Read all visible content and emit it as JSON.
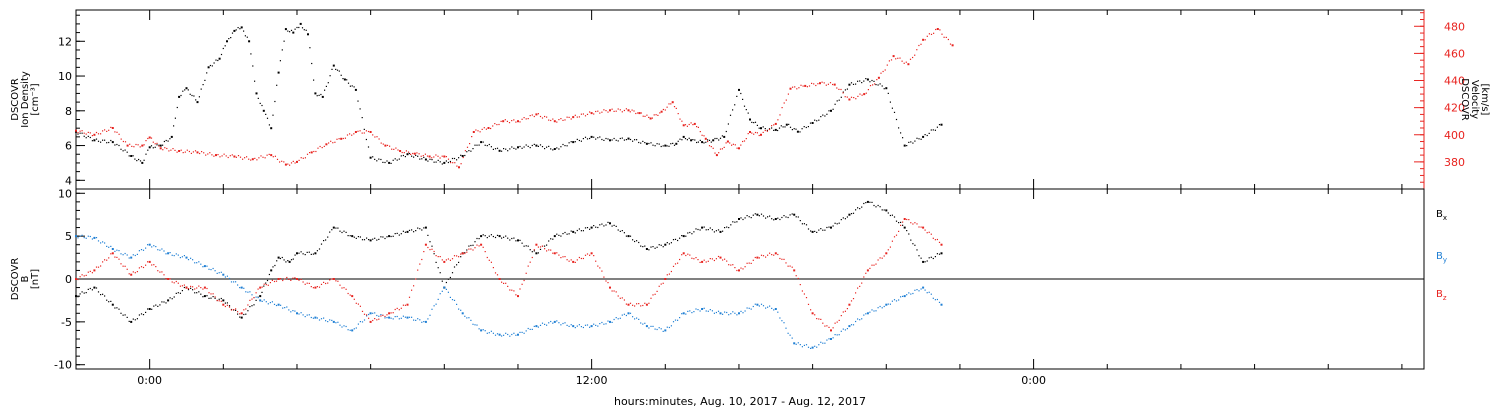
{
  "chart_data": {
    "type": "scatter",
    "xlabel": "hours:minutes, Aug. 10, 2017 - Aug. 12, 2017",
    "x_tick_labels": [
      "0:00",
      "12:00",
      "0:00"
    ],
    "x_tick_hours": [
      0,
      12,
      24
    ],
    "xlim": [
      -2,
      34.6
    ],
    "colors": {
      "black": "#000000",
      "red": "#e8231f",
      "blue": "#1f7fd4"
    },
    "panels": [
      {
        "left_axis": {
          "label_lines": [
            "DSCOVR",
            "Ion Density",
            "[cm⁻³]"
          ],
          "ylim": [
            3.5,
            13.8
          ],
          "ticks": [
            4,
            6,
            8,
            10,
            12
          ],
          "color": "#000000"
        },
        "right_axis": {
          "label_lines": [
            "DSCOVR",
            "Velocity",
            "[km/s]"
          ],
          "ylim": [
            360,
            492
          ],
          "ticks": [
            380,
            400,
            420,
            440,
            460,
            480
          ],
          "color": "#e8231f"
        },
        "series": [
          {
            "axis": "left",
            "color": "#000000",
            "x": [
              -2,
              -1.5,
              -1,
              -0.5,
              -0.2,
              0,
              0.3,
              0.6,
              0.8,
              1.0,
              1.3,
              1.6,
              1.9,
              2.1,
              2.3,
              2.5,
              2.7,
              2.9,
              3.1,
              3.3,
              3.5,
              3.7,
              3.9,
              4.1,
              4.3,
              4.5,
              4.7,
              5.0,
              5.3,
              5.6,
              6.0,
              6.5,
              7.0,
              7.5,
              8.0,
              8.5,
              9.0,
              9.5,
              10.0,
              10.5,
              11.0,
              11.5,
              12.0,
              12.5,
              13.0,
              13.5,
              14.0,
              14.3,
              14.5,
              14.7,
              15.0,
              15.3,
              15.6,
              16.0,
              16.3,
              16.6,
              17.0,
              17.3,
              17.6,
              18.0,
              18.5,
              19.0,
              19.5,
              20.0,
              20.5,
              21.0,
              21.5
            ],
            "y": [
              6.8,
              6.3,
              6.2,
              5.4,
              5.0,
              5.9,
              6.0,
              6.5,
              8.8,
              9.3,
              8.5,
              10.5,
              11.0,
              12.0,
              12.6,
              12.8,
              12.0,
              9.0,
              8.0,
              7.0,
              10.2,
              12.7,
              12.5,
              13.0,
              12.4,
              9.0,
              8.8,
              10.6,
              9.8,
              9.2,
              5.3,
              5.0,
              5.5,
              5.2,
              5.0,
              5.4,
              6.2,
              5.7,
              5.9,
              6.0,
              5.8,
              6.2,
              6.5,
              6.3,
              6.4,
              6.1,
              6.0,
              6.1,
              6.5,
              6.3,
              6.2,
              6.3,
              6.5,
              9.2,
              7.5,
              7.0,
              6.9,
              7.2,
              6.8,
              7.3,
              8.0,
              9.5,
              9.8,
              9.3,
              6.0,
              6.5,
              7.2
            ]
          },
          {
            "axis": "right",
            "color": "#e8231f",
            "x": [
              -2,
              -1.5,
              -1,
              -0.6,
              -0.2,
              0,
              0.3,
              0.8,
              1.3,
              1.8,
              2.3,
              2.8,
              3.3,
              3.7,
              4.0,
              4.4,
              4.8,
              5.2,
              5.6,
              6.0,
              6.4,
              6.8,
              7.2,
              7.6,
              8.0,
              8.4,
              8.8,
              9.2,
              9.6,
              10.0,
              10.5,
              11.0,
              11.5,
              12.0,
              12.5,
              13.0,
              13.3,
              13.6,
              13.9,
              14.2,
              14.5,
              14.8,
              15.1,
              15.4,
              15.7,
              16.0,
              16.3,
              16.6,
              17.0,
              17.4,
              17.8,
              18.2,
              18.6,
              19.0,
              19.4,
              19.8,
              20.2,
              20.6,
              21.0,
              21.4,
              21.8
            ],
            "y": [
              403,
              400,
              405,
              392,
              392,
              398,
              390,
              388,
              387,
              385,
              384,
              382,
              385,
              378,
              380,
              387,
              393,
              397,
              402,
              402,
              392,
              388,
              386,
              384,
              384,
              376,
              402,
              405,
              410,
              410,
              415,
              410,
              413,
              416,
              418,
              418,
              416,
              412,
              417,
              424,
              407,
              408,
              397,
              385,
              395,
              390,
              402,
              400,
              408,
              434,
              436,
              438,
              437,
              426,
              430,
              442,
              458,
              452,
              470,
              478,
              466
            ]
          }
        ]
      },
      {
        "left_axis": {
          "label_lines": [
            "DSCOVR",
            "B",
            "[nT]"
          ],
          "ylim": [
            -10.5,
            10.5
          ],
          "ticks": [
            -10,
            -5,
            0,
            5,
            10
          ],
          "color": "#000000"
        },
        "zero_line": true,
        "legend": [
          {
            "text": "Bx",
            "color": "#000000"
          },
          {
            "text": "By",
            "color": "#1f7fd4"
          },
          {
            "text": "Bz",
            "color": "#e8231f"
          }
        ],
        "series": [
          {
            "name": "Bx",
            "color": "#000000",
            "x": [
              -2,
              -1.5,
              -1,
              -0.5,
              0,
              0.5,
              1.0,
              1.5,
              2.0,
              2.5,
              3.0,
              3.3,
              3.5,
              3.8,
              4.0,
              4.5,
              5.0,
              5.5,
              6.0,
              6.5,
              7.0,
              7.5,
              8.0,
              8.5,
              9.0,
              9.5,
              10.0,
              10.5,
              11.0,
              11.5,
              12.0,
              12.5,
              13.0,
              13.5,
              14.0,
              14.5,
              15.0,
              15.5,
              16.0,
              16.5,
              17.0,
              17.5,
              18.0,
              18.5,
              19.0,
              19.5,
              20.0,
              20.5,
              21.0,
              21.5
            ],
            "y": [
              -2,
              -1,
              -3,
              -5,
              -3.5,
              -2.5,
              -1,
              -2,
              -2.5,
              -4.5,
              -2,
              1,
              2.5,
              2,
              3,
              3,
              6,
              5,
              4.5,
              5,
              5.5,
              6,
              -1,
              3,
              5,
              5,
              4.5,
              3,
              5,
              5.5,
              6,
              6.5,
              5,
              3.5,
              4,
              5,
              6,
              5.5,
              7,
              7.5,
              7,
              7.5,
              5.5,
              6,
              7.5,
              9,
              8,
              6,
              2,
              3
            ]
          },
          {
            "name": "By",
            "color": "#1f7fd4",
            "x": [
              -2,
              -1.5,
              -1,
              -0.5,
              0,
              0.5,
              1.0,
              1.5,
              2.0,
              2.5,
              3.0,
              3.5,
              4.0,
              4.5,
              5.0,
              5.5,
              6.0,
              6.5,
              7.0,
              7.5,
              8.0,
              8.5,
              9.0,
              9.5,
              10.0,
              10.5,
              11.0,
              11.5,
              12.0,
              12.5,
              13.0,
              13.5,
              14.0,
              14.5,
              15.0,
              15.5,
              16.0,
              16.5,
              17.0,
              17.5,
              18.0,
              18.5,
              19.0,
              19.5,
              20.0,
              20.5,
              21.0,
              21.5
            ],
            "y": [
              5,
              4.8,
              3.5,
              2.5,
              4,
              3,
              2.5,
              1.5,
              0.5,
              -1,
              -2.5,
              -3,
              -4,
              -4.5,
              -5,
              -6,
              -4,
              -4.5,
              -4.5,
              -5,
              -1,
              -4,
              -6,
              -6.5,
              -6.5,
              -5.5,
              -5,
              -5.5,
              -5.5,
              -5,
              -4,
              -5.5,
              -6,
              -4,
              -3.5,
              -4,
              -4,
              -3,
              -3.5,
              -7.5,
              -8,
              -7,
              -5.5,
              -4,
              -3,
              -2,
              -1,
              -3
            ]
          },
          {
            "name": "Bz",
            "color": "#e8231f",
            "x": [
              -2,
              -1.5,
              -1,
              -0.5,
              0,
              0.5,
              1.0,
              1.5,
              2.0,
              2.5,
              3.0,
              3.5,
              4.0,
              4.5,
              5.0,
              5.5,
              6.0,
              6.5,
              7.0,
              7.5,
              8.0,
              8.5,
              9.0,
              9.5,
              10.0,
              10.5,
              11.0,
              11.5,
              12.0,
              12.5,
              13.0,
              13.5,
              14.0,
              14.5,
              15.0,
              15.5,
              16.0,
              16.5,
              17.0,
              17.5,
              18.0,
              18.5,
              19.0,
              19.5,
              20.0,
              20.5,
              21.0,
              21.5
            ],
            "y": [
              0,
              1,
              3,
              0.5,
              2,
              0,
              -1,
              -1,
              -3,
              -4,
              -1,
              0,
              0,
              -1,
              0,
              -2,
              -5,
              -4,
              -3,
              4,
              2,
              3,
              4,
              0,
              -2,
              4,
              3,
              2,
              3,
              -1,
              -3,
              -3,
              0,
              3,
              2,
              2.5,
              1,
              2.5,
              3,
              1,
              -4,
              -6,
              -3,
              1,
              3,
              7,
              6,
              4
            ]
          }
        ]
      }
    ]
  }
}
